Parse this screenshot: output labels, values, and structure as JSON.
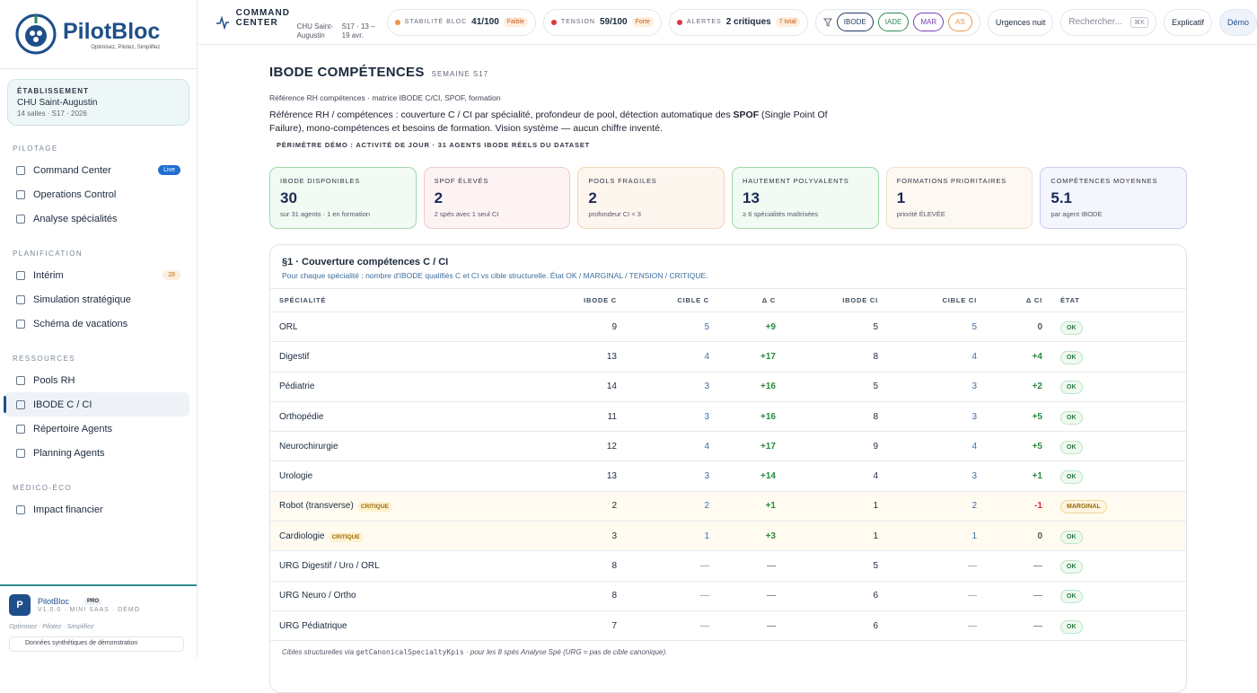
{
  "sidebar": {
    "logo": {
      "name": "PilotBloc",
      "tagline": "Optimisez, Pilotez, Simplifiez"
    },
    "establishment": {
      "label": "ÉTABLISSEMENT",
      "name": "CHU Saint-Augustin",
      "meta": "14 salles · S17 · 2026"
    },
    "sections": [
      {
        "title": "PILOTAGE",
        "items": [
          {
            "label": "Command Center",
            "badge": "Live"
          },
          {
            "label": "Operations Control"
          },
          {
            "label": "Analyse spécialités"
          }
        ]
      },
      {
        "title": "PLANIFICATION",
        "items": [
          {
            "label": "Intérim",
            "badge": "28"
          },
          {
            "label": "Simulation stratégique"
          },
          {
            "label": "Schéma de vacations"
          }
        ]
      },
      {
        "title": "RESSOURCES",
        "items": [
          {
            "label": "Pools RH"
          },
          {
            "label": "IBODE C / CI",
            "active": true
          },
          {
            "label": "Répertoire Agents"
          },
          {
            "label": "Planning Agents"
          }
        ]
      },
      {
        "title": "MÉDICO-ÉCO",
        "items": [
          {
            "label": "Impact financier"
          }
        ]
      }
    ],
    "footer": {
      "avatar": "P",
      "name": "PilotBloc",
      "tag": "PRO",
      "version": "V1.0.0 · MINI SAAS · DÉMO",
      "tagline": "Optimisez · Pilotez · Simplifiez",
      "note": "Données synthétiques de démonstration"
    }
  },
  "topbar": {
    "title": "COMMAND CENTER",
    "site": "CHU Saint-Augustin",
    "week": "S17 · 13 – 19 avr.",
    "metrics": [
      {
        "label": "STABILITÉ BLOC",
        "value": "41/100",
        "badge": "Faible",
        "color": "#e8944a"
      },
      {
        "label": "TENSION",
        "value": "59/100",
        "badge": "Forte",
        "color": "#e0323c"
      },
      {
        "label": "ALERTES",
        "value": "2 critiques",
        "badge": "7 total",
        "color": "#e0323c"
      }
    ],
    "filters": [
      {
        "label": "IBODE",
        "color": "#1f3a5f"
      },
      {
        "label": "IADE",
        "color": "#2e8b57"
      },
      {
        "label": "MAR",
        "color": "#7b3fb5"
      },
      {
        "label": "AS",
        "color": "#e8944a"
      }
    ],
    "night": "Urgences nuit",
    "search": "Rechercher...",
    "kbd": "⌘K",
    "explain": "Explicatif",
    "demo": "Démo"
  },
  "header": {
    "title": "IBODE COMPÉTENCES",
    "week": "SEMAINE S17",
    "breadcrumb": "Référence RH compétences · matrice IBODE C/CI, SPOF, formation",
    "description": [
      "Référence RH / compétences : couverture C / CI par spécialité, profondeur de pool, détection automatique des ",
      "SPOF",
      " (Single Point Of Failure), mono-compétences et besoins de formation. Vision système — aucun chiffre inventé."
    ],
    "scope": "PÉRIMÈTRE DÉMO : ACTIVITÉ DE JOUR · 31 AGENTS IBODE RÉELS DU DATASET"
  },
  "kpis": [
    {
      "label": "IBODE DISPONIBLES",
      "value": "30",
      "sub": "sur 31 agents · 1 en formation",
      "tone": "green"
    },
    {
      "label": "SPOF ÉLEVÉS",
      "value": "2",
      "sub": "2 spés avec 1 seul CI",
      "tone": "red"
    },
    {
      "label": "POOLS FRAGILES",
      "value": "2",
      "sub": "profondeur CI < 3",
      "tone": "orange"
    },
    {
      "label": "HAUTEMENT POLYVALENTS",
      "value": "13",
      "sub": "≥ 6 spécialités maîtrisées",
      "tone": "green"
    },
    {
      "label": "FORMATIONS PRIORITAIRES",
      "value": "1",
      "sub": "priorité ÉLEVÉE",
      "tone": "peach"
    },
    {
      "label": "COMPÉTENCES MOYENNES",
      "value": "5.1",
      "sub": "par agent IBODE",
      "tone": "blue"
    }
  ],
  "table": {
    "title": "§1 · Couverture compétences C / CI",
    "subtitle": "Pour chaque spécialité : nombre d'IBODE qualifiés C et CI vs cible structurelle. État OK / MARGINAL / TENSION / CRITIQUE.",
    "columns": [
      "SPÉCIALITÉ",
      "IBODE C",
      "CIBLE C",
      "Δ C",
      "IBODE CI",
      "CIBLE CI",
      "Δ CI",
      "ÉTAT"
    ],
    "rows": [
      {
        "cells": [
          "ORL",
          "9",
          "5",
          "+9",
          "5",
          "5",
          "0",
          "OK"
        ]
      },
      {
        "cells": [
          "Digestif",
          "13",
          "4",
          "+17",
          "8",
          "4",
          "+4",
          "OK"
        ]
      },
      {
        "cells": [
          "Pédiatrie",
          "14",
          "3",
          "+16",
          "5",
          "3",
          "+2",
          "OK"
        ]
      },
      {
        "cells": [
          "Orthopédie",
          "11",
          "3",
          "+16",
          "8",
          "3",
          "+5",
          "OK"
        ]
      },
      {
        "cells": [
          "Neurochirurgie",
          "12",
          "4",
          "+17",
          "9",
          "4",
          "+5",
          "OK"
        ]
      },
      {
        "cells": [
          "Urologie",
          "13",
          "3",
          "+14",
          "4",
          "3",
          "+1",
          "OK"
        ]
      },
      {
        "cells": [
          "Robot (transverse)",
          "2",
          "2",
          "+1",
          "1",
          "2",
          "-1",
          "MARGINAL"
        ],
        "tag": "CRITIQUE"
      },
      {
        "cells": [
          "Cardiologie",
          "3",
          "1",
          "+3",
          "1",
          "1",
          "0",
          "OK"
        ],
        "tag": "CRITIQUE"
      },
      {
        "cells": [
          "URG Digestif / Uro / ORL",
          "8",
          "—",
          "—",
          "5",
          "—",
          "—",
          "OK"
        ]
      },
      {
        "cells": [
          "URG Neuro / Ortho",
          "8",
          "—",
          "—",
          "6",
          "—",
          "—",
          "OK"
        ]
      },
      {
        "cells": [
          "URG Pédiatrique",
          "7",
          "—",
          "—",
          "6",
          "—",
          "—",
          "OK"
        ]
      }
    ],
    "footnote": [
      "Cibles structurelles via ",
      "getCanonicalSpecialtyKpis",
      " · pour les 8 spés Analyse Spé (URG = pas de cible canonique)."
    ]
  }
}
